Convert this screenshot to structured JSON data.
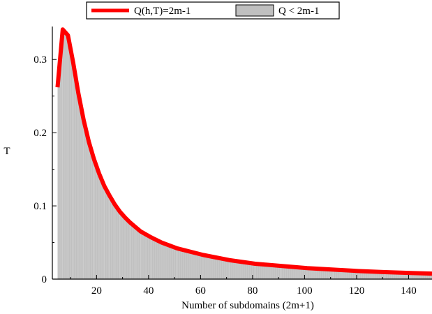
{
  "chart_data": {
    "type": "area",
    "title": "",
    "xlabel": "Number of subdomains (2m+1)",
    "ylabel": "T",
    "xlim": [
      3,
      149
    ],
    "ylim": [
      0,
      0.345
    ],
    "xticks": [
      20,
      40,
      60,
      80,
      100,
      120,
      140
    ],
    "xtick_labels": [
      "20",
      "40",
      "60",
      "80",
      "100",
      "120",
      "140"
    ],
    "yticks": [
      0,
      0.1,
      0.2,
      0.3
    ],
    "ytick_labels": [
      "0",
      "0.1",
      "0.2",
      "0.3"
    ],
    "legend_position": "top-center",
    "grid": false,
    "series": [
      {
        "name": "Q(h,T)=2m-1",
        "kind": "line",
        "color": "#ff0000",
        "x": [
          5,
          7,
          9,
          11,
          13,
          15,
          17,
          19,
          21,
          23,
          25,
          27,
          29,
          31,
          33,
          35,
          37,
          39,
          41,
          45,
          51,
          61,
          71,
          81,
          91,
          101,
          111,
          121,
          131,
          141,
          149
        ],
        "y": [
          0.262,
          0.341,
          0.333,
          0.296,
          0.254,
          0.218,
          0.188,
          0.164,
          0.144,
          0.127,
          0.114,
          0.102,
          0.092,
          0.084,
          0.077,
          0.071,
          0.065,
          0.061,
          0.057,
          0.05,
          0.042,
          0.033,
          0.026,
          0.021,
          0.018,
          0.015,
          0.013,
          0.011,
          0.0095,
          0.0083,
          0.0075
        ]
      },
      {
        "name": "Q < 2m-1",
        "kind": "area",
        "color": "#c0c0c0"
      }
    ]
  }
}
